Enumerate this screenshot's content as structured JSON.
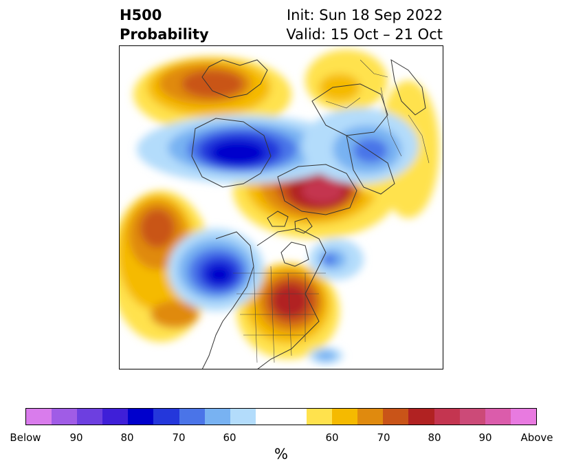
{
  "header": {
    "title_line1": "H500",
    "title_line2": "Probability",
    "init_text": "Init: Sun 18 Sep 2022",
    "valid_text": "Valid: 15 Oct – 21 Oct"
  },
  "map": {
    "projection": "north-polar-stereographic",
    "field": "500 hPa height anomaly probability",
    "features": [
      {
        "name": "below-center-west-north-america",
        "category": "below",
        "level": "80-90"
      },
      {
        "name": "below-center-north-pacific",
        "category": "below",
        "level": "80-90"
      },
      {
        "name": "below-center-siberia",
        "category": "below",
        "level": "60-70"
      },
      {
        "name": "below-center-hudson-bay",
        "category": "below",
        "level": "60-70"
      },
      {
        "name": "below-center-atlantic-small",
        "category": "below",
        "level": "60"
      },
      {
        "name": "above-center-arctic",
        "category": "above",
        "level": "80-90"
      },
      {
        "name": "above-center-eastern-north-america",
        "category": "above",
        "level": "80"
      },
      {
        "name": "above-center-north-pacific-west",
        "category": "above",
        "level": "70-80"
      },
      {
        "name": "above-center-europe",
        "category": "above",
        "level": "70-80"
      },
      {
        "name": "above-center-central-asia",
        "category": "above",
        "level": "60-70"
      }
    ]
  },
  "colorbar": {
    "segments": [
      "#d97cec",
      "#a05ce6",
      "#6d3fe0",
      "#3f1fd8",
      "#0000cc",
      "#2437db",
      "#4a74e8",
      "#78b2f2",
      "#b3dcfb",
      "#ffffff",
      "#ffffff",
      "#ffe24d",
      "#f5ba00",
      "#e08a0e",
      "#c95418",
      "#b12222",
      "#c43550",
      "#cc4a78",
      "#db5cab",
      "#e87ae0"
    ],
    "ticks": [
      "Below",
      "90",
      "80",
      "70",
      "60",
      "60",
      "70",
      "80",
      "90",
      "Above"
    ],
    "unit": "%"
  }
}
